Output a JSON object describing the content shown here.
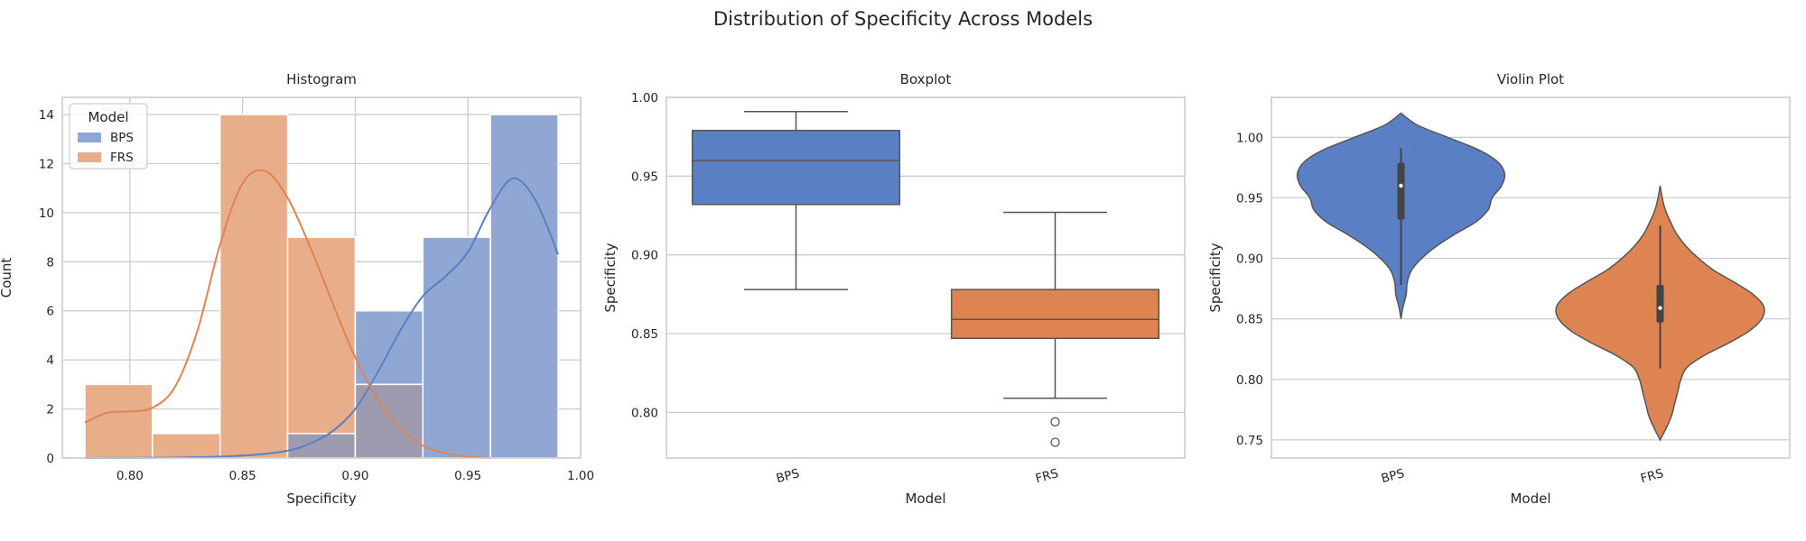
{
  "figure": {
    "title": "Distribution of Specificity Across Models"
  },
  "colors": {
    "BPS": "#5b7fc4",
    "FRS": "#dd8452",
    "BPS_hist": "#8fa7d2",
    "FRS_hist": "#e8ad89",
    "overlap": "#9e9bb0",
    "box_line": "#555555"
  },
  "chart_data": [
    {
      "type": "histogram",
      "title": "Histogram",
      "xlabel": "Specificity",
      "ylabel": "Count",
      "xlim": [
        0.77,
        1.0
      ],
      "ylim": [
        0,
        14.7
      ],
      "xticks": [
        "0.80",
        "0.85",
        "0.90",
        "0.95",
        "1.00"
      ],
      "yticks": [
        "0",
        "2",
        "4",
        "6",
        "8",
        "10",
        "12",
        "14"
      ],
      "grid": true,
      "legend": {
        "title": "Model",
        "position": "top-left",
        "entries": [
          "BPS",
          "FRS"
        ]
      },
      "bin_edges": [
        0.78,
        0.81,
        0.84,
        0.87,
        0.9,
        0.93,
        0.96,
        0.99
      ],
      "series": [
        {
          "name": "BPS",
          "counts": [
            0,
            0,
            0,
            1,
            6,
            9,
            14
          ],
          "kde": {
            "x": [
              0.78,
              0.82,
              0.85,
              0.87,
              0.88,
              0.89,
              0.9,
              0.91,
              0.92,
              0.93,
              0.94,
              0.95,
              0.96,
              0.97,
              0.98,
              0.99
            ],
            "y": [
              0,
              0.02,
              0.1,
              0.3,
              0.6,
              1.1,
              2.0,
              3.5,
              5.2,
              6.6,
              7.4,
              8.4,
              10.2,
              11.4,
              10.5,
              8.3
            ]
          }
        },
        {
          "name": "FRS",
          "counts": [
            3,
            1,
            14,
            9,
            3,
            0,
            0
          ],
          "kde": {
            "x": [
              0.78,
              0.79,
              0.8,
              0.81,
              0.82,
              0.83,
              0.84,
              0.85,
              0.86,
              0.87,
              0.88,
              0.89,
              0.9,
              0.91,
              0.92,
              0.93,
              0.94,
              0.95,
              0.96
            ],
            "y": [
              1.45,
              1.85,
              1.9,
              2.05,
              2.9,
              5.2,
              8.7,
              11.2,
              11.7,
              10.6,
              8.6,
              6.3,
              4.1,
              2.4,
              1.2,
              0.5,
              0.2,
              0.05,
              0
            ]
          }
        }
      ]
    },
    {
      "type": "box",
      "title": "Boxplot",
      "xlabel": "Model",
      "ylabel": "Specificity",
      "ylim": [
        0.771,
        1.0
      ],
      "yticks": [
        "0.80",
        "0.85",
        "0.90",
        "0.95",
        "1.00"
      ],
      "categories": [
        "BPS",
        "FRS"
      ],
      "grid": true,
      "series": [
        {
          "name": "BPS",
          "whisker_low": 0.878,
          "q1": 0.932,
          "median": 0.96,
          "q3": 0.979,
          "whisker_high": 0.991,
          "outliers": []
        },
        {
          "name": "FRS",
          "whisker_low": 0.809,
          "q1": 0.847,
          "median": 0.859,
          "q3": 0.878,
          "whisker_high": 0.927,
          "outliers": [
            0.794,
            0.781
          ]
        }
      ]
    },
    {
      "type": "violin",
      "title": "Violin Plot",
      "xlabel": "Model",
      "ylabel": "Specificity",
      "ylim": [
        0.735,
        1.033
      ],
      "yticks": [
        "0.75",
        "0.80",
        "0.85",
        "0.90",
        "0.95",
        "1.00"
      ],
      "categories": [
        "BPS",
        "FRS"
      ],
      "grid": true,
      "series": [
        {
          "name": "BPS",
          "profile_y": [
            0.85,
            0.86,
            0.87,
            0.88,
            0.89,
            0.9,
            0.91,
            0.92,
            0.93,
            0.94,
            0.95,
            0.96,
            0.97,
            0.98,
            0.99,
            1.0,
            1.01,
            1.02
          ],
          "profile_w": [
            0,
            0.02,
            0.05,
            0.06,
            0.1,
            0.2,
            0.34,
            0.52,
            0.72,
            0.84,
            0.88,
            0.97,
            1.0,
            0.93,
            0.74,
            0.45,
            0.16,
            0
          ],
          "q1": 0.932,
          "median": 0.96,
          "q3": 0.979,
          "whisker_low": 0.878,
          "whisker_high": 0.991
        },
        {
          "name": "FRS",
          "profile_y": [
            0.75,
            0.76,
            0.77,
            0.78,
            0.79,
            0.8,
            0.81,
            0.82,
            0.83,
            0.84,
            0.85,
            0.86,
            0.87,
            0.88,
            0.89,
            0.9,
            0.91,
            0.92,
            0.93,
            0.94,
            0.95,
            0.96
          ],
          "profile_w": [
            0,
            0.06,
            0.11,
            0.14,
            0.17,
            0.2,
            0.26,
            0.43,
            0.66,
            0.86,
            0.98,
            1.0,
            0.9,
            0.72,
            0.52,
            0.37,
            0.25,
            0.16,
            0.1,
            0.05,
            0.02,
            0
          ],
          "q1": 0.847,
          "median": 0.859,
          "q3": 0.878,
          "whisker_low": 0.809,
          "whisker_high": 0.927
        }
      ]
    }
  ]
}
